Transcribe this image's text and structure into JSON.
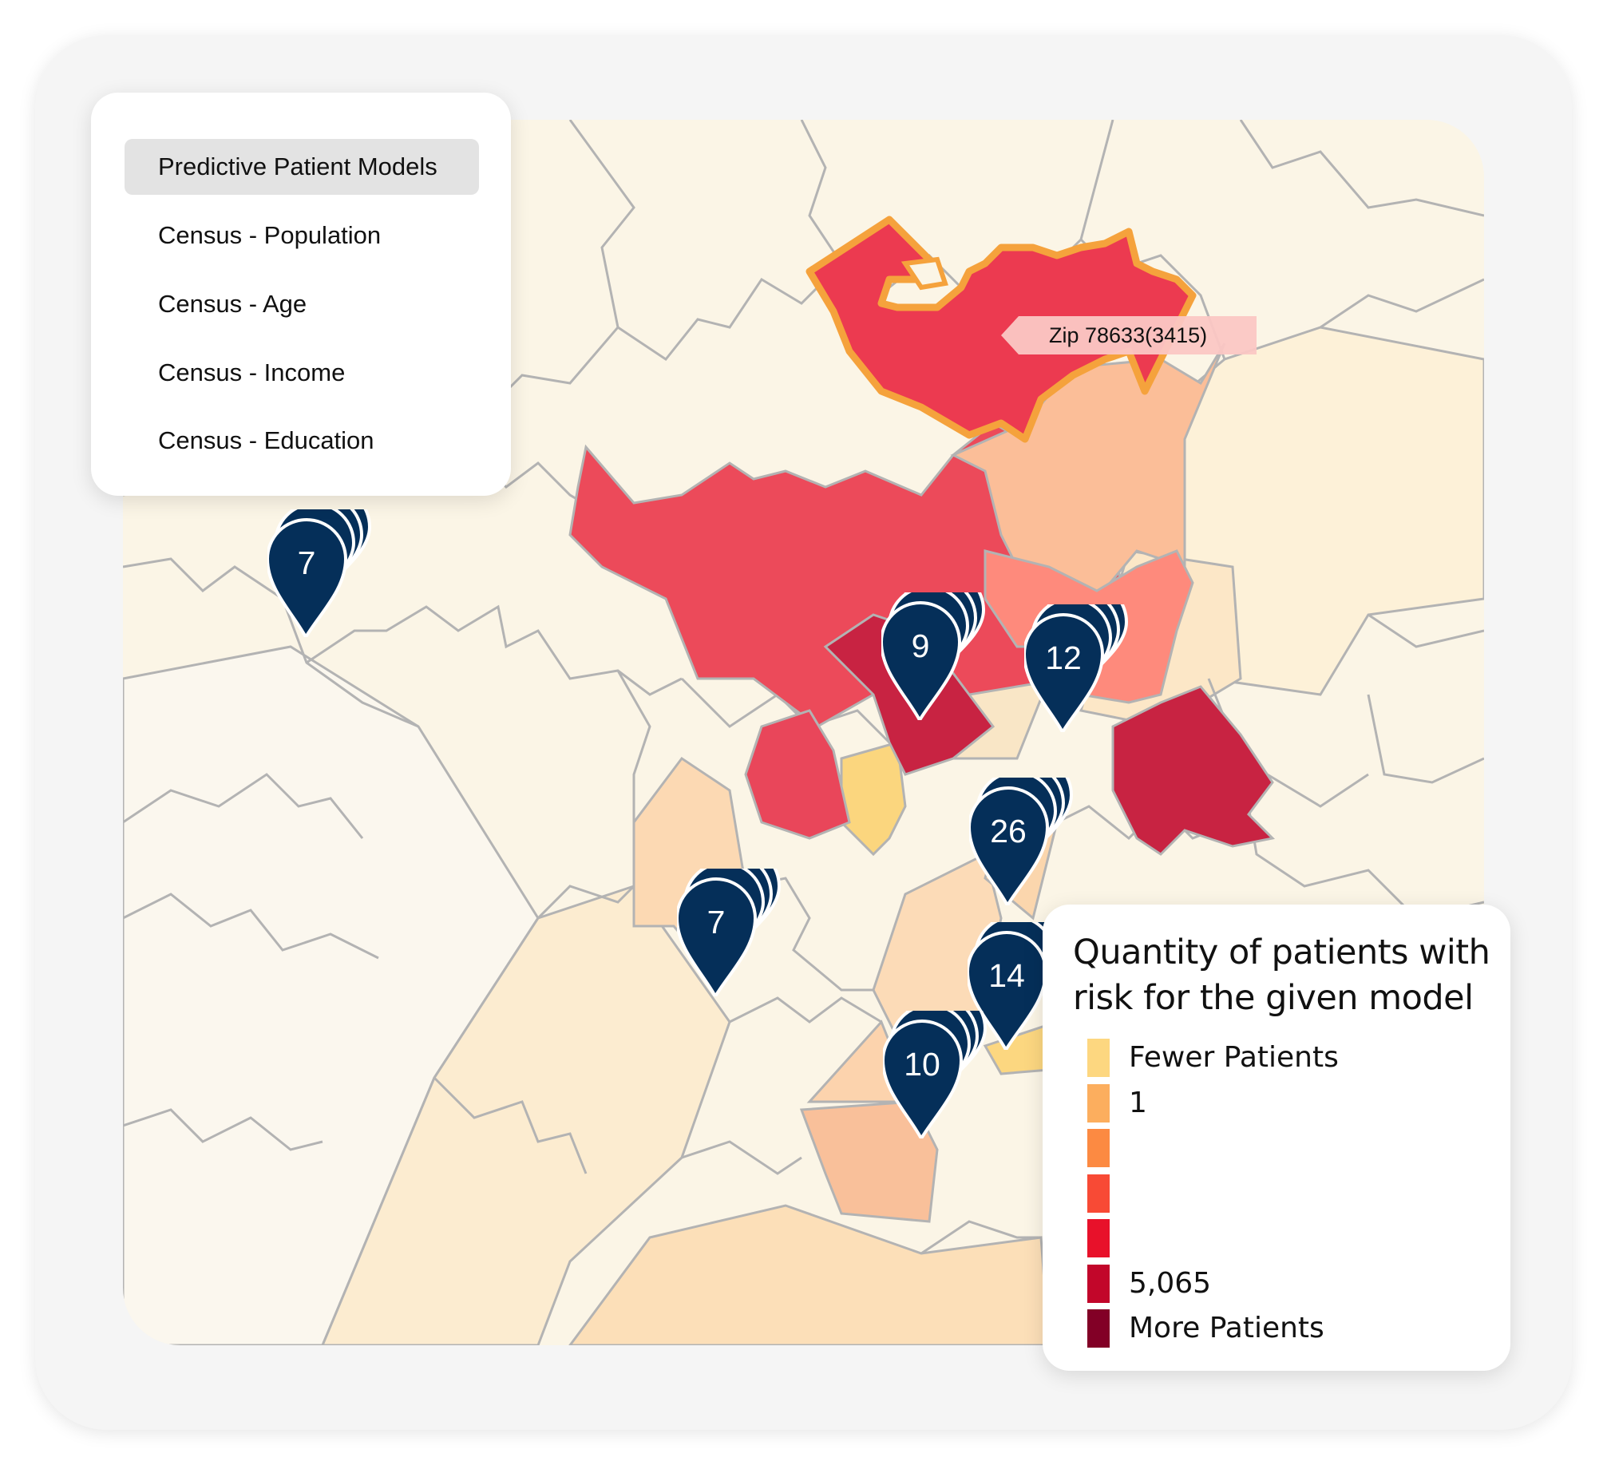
{
  "layers": {
    "items": [
      {
        "label": "Predictive Patient Models",
        "selected": true
      },
      {
        "label": "Census - Population",
        "selected": false
      },
      {
        "label": "Census - Age",
        "selected": false
      },
      {
        "label": "Census - Income",
        "selected": false
      },
      {
        "label": "Census - Education",
        "selected": false
      }
    ]
  },
  "tooltip": {
    "label": "Zip 78633(3415)"
  },
  "clusters": [
    {
      "count": "7"
    },
    {
      "count": "9"
    },
    {
      "count": "12"
    },
    {
      "count": "26"
    },
    {
      "count": "7"
    },
    {
      "count": "14"
    },
    {
      "count": "10"
    }
  ],
  "legend": {
    "title": "Quantity of patients with risk for the given model",
    "items": [
      {
        "label": "Fewer Patients",
        "color": "#fdd780"
      },
      {
        "label": "1",
        "color": "#fcae5e"
      },
      {
        "label": "",
        "color": "#fc8a42"
      },
      {
        "label": "",
        "color": "#f84a35"
      },
      {
        "label": "",
        "color": "#e8112a"
      },
      {
        "label": "5,065",
        "color": "#c2062a"
      },
      {
        "label": "More Patients",
        "color": "#820026"
      }
    ]
  },
  "colors": {
    "pin": "#052f59",
    "highlight_outline": "#f5a23c",
    "boundary": "#b3b3b3"
  }
}
